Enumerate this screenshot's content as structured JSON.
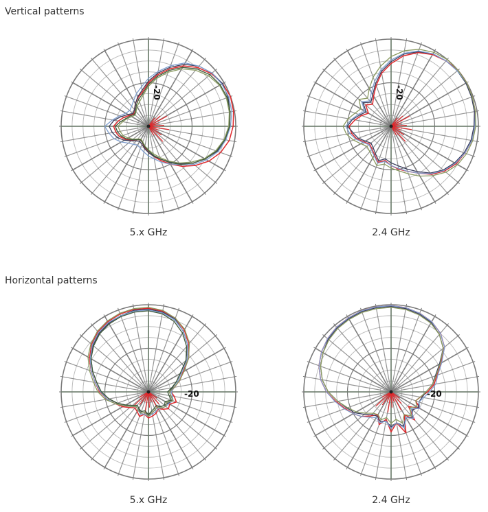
{
  "sections": {
    "vertical_title": "Vertical patterns",
    "horizontal_title": "Horizontal patterns"
  },
  "colors": {
    "grid_dark": "#7a7a7a",
    "grid_light": "#b9b9b9",
    "grid_vertical_axis": "#6f7f6f",
    "red": "#e0282c",
    "navy": "#3b3f5e",
    "steel": "#7f9fd0",
    "olive": "#8a9a60",
    "darkgreen": "#3f5a3a"
  },
  "chart_data": [
    {
      "type": "polar",
      "group": "Vertical patterns",
      "caption": "5.x GHz",
      "ring_label": "-20",
      "rings": 8,
      "spokes": 36,
      "series": [
        {
          "color": "red",
          "r": [
            0.4,
            0.35,
            0.3,
            0.25,
            0.22,
            0.25,
            0.3,
            0.35,
            0.4,
            0.5,
            0.6,
            0.7,
            0.8,
            0.88,
            0.94,
            0.98,
            1.0,
            0.99,
            0.97,
            0.94,
            0.88,
            0.8,
            0.7,
            0.6,
            0.5,
            0.42,
            0.35,
            0.3,
            0.25,
            0.2,
            0.18,
            0.2,
            0.25,
            0.3,
            0.35,
            0.38
          ]
        },
        {
          "color": "navy",
          "r": [
            0.45,
            0.4,
            0.33,
            0.27,
            0.23,
            0.25,
            0.3,
            0.36,
            0.42,
            0.52,
            0.62,
            0.72,
            0.82,
            0.9,
            0.95,
            0.98,
            0.97,
            0.95,
            0.93,
            0.9,
            0.84,
            0.75,
            0.66,
            0.56,
            0.47,
            0.4,
            0.35,
            0.3,
            0.26,
            0.22,
            0.2,
            0.22,
            0.26,
            0.32,
            0.38,
            0.42
          ]
        },
        {
          "color": "steel",
          "r": [
            0.5,
            0.42,
            0.35,
            0.3,
            0.28,
            0.3,
            0.34,
            0.4,
            0.46,
            0.55,
            0.64,
            0.74,
            0.84,
            0.9,
            0.95,
            0.97,
            0.98,
            0.97,
            0.94,
            0.9,
            0.85,
            0.77,
            0.68,
            0.58,
            0.5,
            0.44,
            0.38,
            0.34,
            0.3,
            0.27,
            0.25,
            0.27,
            0.3,
            0.36,
            0.42,
            0.46
          ]
        },
        {
          "color": "olive",
          "r": [
            0.35,
            0.3,
            0.26,
            0.22,
            0.2,
            0.22,
            0.26,
            0.3,
            0.36,
            0.46,
            0.56,
            0.66,
            0.76,
            0.84,
            0.9,
            0.94,
            0.95,
            0.94,
            0.92,
            0.88,
            0.82,
            0.74,
            0.64,
            0.55,
            0.46,
            0.38,
            0.32,
            0.27,
            0.23,
            0.19,
            0.17,
            0.19,
            0.23,
            0.27,
            0.31,
            0.33
          ]
        },
        {
          "color": "darkgreen",
          "r": [
            0.38,
            0.32,
            0.27,
            0.24,
            0.21,
            0.23,
            0.28,
            0.33,
            0.38,
            0.48,
            0.58,
            0.68,
            0.78,
            0.86,
            0.92,
            0.95,
            0.96,
            0.95,
            0.93,
            0.89,
            0.83,
            0.75,
            0.66,
            0.57,
            0.48,
            0.4,
            0.34,
            0.28,
            0.24,
            0.2,
            0.18,
            0.2,
            0.24,
            0.29,
            0.33,
            0.36
          ]
        }
      ]
    },
    {
      "type": "polar",
      "group": "Vertical patterns",
      "caption": "2.4 GHz",
      "ring_label": "-20",
      "rings": 8,
      "spokes": 36,
      "series": [
        {
          "color": "red",
          "r": [
            0.48,
            0.42,
            0.36,
            0.3,
            0.38,
            0.33,
            0.4,
            0.5,
            0.62,
            0.72,
            0.82,
            0.9,
            0.95,
            0.98,
            1.0,
            1.0,
            0.99,
            0.98,
            0.96,
            0.94,
            0.9,
            0.86,
            0.8,
            0.72,
            0.62,
            0.55,
            0.5,
            0.45,
            0.4,
            0.44,
            0.38,
            0.34,
            0.32,
            0.36,
            0.42,
            0.46
          ]
        },
        {
          "color": "navy",
          "r": [
            0.5,
            0.45,
            0.38,
            0.33,
            0.42,
            0.36,
            0.42,
            0.52,
            0.64,
            0.74,
            0.84,
            0.91,
            0.96,
            0.98,
            0.99,
            0.99,
            0.98,
            0.97,
            0.95,
            0.93,
            0.89,
            0.84,
            0.78,
            0.7,
            0.6,
            0.52,
            0.46,
            0.42,
            0.38,
            0.42,
            0.36,
            0.32,
            0.3,
            0.34,
            0.4,
            0.44
          ]
        },
        {
          "color": "steel",
          "r": [
            0.52,
            0.46,
            0.4,
            0.35,
            0.44,
            0.38,
            0.45,
            0.55,
            0.66,
            0.76,
            0.85,
            0.92,
            0.96,
            0.98,
            0.99,
            1.0,
            0.99,
            0.98,
            0.96,
            0.94,
            0.9,
            0.85,
            0.79,
            0.71,
            0.62,
            0.55,
            0.49,
            0.45,
            0.41,
            0.45,
            0.39,
            0.35,
            0.33,
            0.37,
            0.43,
            0.48
          ]
        },
        {
          "color": "olive",
          "r": [
            0.55,
            0.5,
            0.44,
            0.4,
            0.48,
            0.42,
            0.5,
            0.6,
            0.7,
            0.8,
            0.88,
            0.94,
            0.98,
            1.0,
            1.0,
            1.0,
            0.99,
            0.98,
            0.97,
            0.95,
            0.92,
            0.88,
            0.82,
            0.74,
            0.66,
            0.58,
            0.52,
            0.48,
            0.44,
            0.48,
            0.42,
            0.38,
            0.36,
            0.4,
            0.46,
            0.52
          ]
        }
      ]
    },
    {
      "type": "polar",
      "group": "Horizontal patterns",
      "caption": "5.x GHz",
      "ring_label": "-20",
      "rings": 8,
      "spokes": 36,
      "series": [
        {
          "color": "red",
          "r": [
            0.96,
            0.94,
            0.9,
            0.82,
            0.72,
            0.6,
            0.46,
            0.38,
            0.3,
            0.26,
            0.3,
            0.34,
            0.28,
            0.3,
            0.26,
            0.22,
            0.26,
            0.28,
            0.3,
            0.26,
            0.3,
            0.26,
            0.24,
            0.28,
            0.34,
            0.4,
            0.48,
            0.56,
            0.62,
            0.7,
            0.78,
            0.85,
            0.9,
            0.93,
            0.95,
            0.96
          ]
        },
        {
          "color": "navy",
          "r": [
            0.95,
            0.93,
            0.89,
            0.8,
            0.7,
            0.56,
            0.42,
            0.34,
            0.28,
            0.24,
            0.26,
            0.3,
            0.26,
            0.24,
            0.22,
            0.2,
            0.22,
            0.24,
            0.26,
            0.24,
            0.26,
            0.22,
            0.2,
            0.24,
            0.3,
            0.38,
            0.46,
            0.54,
            0.6,
            0.68,
            0.76,
            0.83,
            0.88,
            0.91,
            0.93,
            0.95
          ]
        },
        {
          "color": "steel",
          "r": [
            0.94,
            0.92,
            0.88,
            0.8,
            0.7,
            0.58,
            0.44,
            0.36,
            0.3,
            0.26,
            0.28,
            0.3,
            0.27,
            0.26,
            0.24,
            0.22,
            0.24,
            0.26,
            0.28,
            0.26,
            0.27,
            0.24,
            0.22,
            0.26,
            0.32,
            0.4,
            0.48,
            0.55,
            0.62,
            0.7,
            0.77,
            0.84,
            0.89,
            0.92,
            0.93,
            0.94
          ]
        },
        {
          "color": "olive",
          "r": [
            0.97,
            0.95,
            0.9,
            0.83,
            0.73,
            0.6,
            0.47,
            0.38,
            0.3,
            0.24,
            0.26,
            0.3,
            0.24,
            0.26,
            0.24,
            0.2,
            0.22,
            0.24,
            0.28,
            0.24,
            0.26,
            0.24,
            0.22,
            0.26,
            0.32,
            0.4,
            0.5,
            0.58,
            0.64,
            0.72,
            0.8,
            0.86,
            0.91,
            0.94,
            0.96,
            0.97
          ]
        },
        {
          "color": "darkgreen",
          "r": [
            0.93,
            0.91,
            0.86,
            0.78,
            0.68,
            0.56,
            0.42,
            0.34,
            0.27,
            0.22,
            0.24,
            0.28,
            0.22,
            0.24,
            0.22,
            0.18,
            0.2,
            0.22,
            0.26,
            0.22,
            0.24,
            0.22,
            0.2,
            0.24,
            0.3,
            0.38,
            0.46,
            0.54,
            0.6,
            0.68,
            0.76,
            0.82,
            0.87,
            0.9,
            0.92,
            0.93
          ]
        }
      ]
    },
    {
      "type": "polar",
      "group": "Horizontal patterns",
      "caption": "2.4 GHz",
      "ring_label": "-20",
      "rings": 8,
      "spokes": 36,
      "series": [
        {
          "color": "red",
          "r": [
            0.99,
            0.98,
            0.96,
            0.93,
            0.88,
            0.8,
            0.66,
            0.56,
            0.5,
            0.42,
            0.34,
            0.3,
            0.38,
            0.26,
            0.42,
            0.3,
            0.5,
            0.36,
            0.46,
            0.32,
            0.4,
            0.3,
            0.36,
            0.44,
            0.5,
            0.56,
            0.64,
            0.74,
            0.82,
            0.88,
            0.92,
            0.95,
            0.97,
            0.98,
            0.99,
            0.99
          ]
        },
        {
          "color": "navy",
          "r": [
            0.98,
            0.97,
            0.95,
            0.92,
            0.86,
            0.78,
            0.64,
            0.54,
            0.48,
            0.4,
            0.36,
            0.34,
            0.36,
            0.32,
            0.38,
            0.34,
            0.42,
            0.36,
            0.4,
            0.34,
            0.36,
            0.32,
            0.34,
            0.4,
            0.48,
            0.54,
            0.62,
            0.72,
            0.8,
            0.86,
            0.9,
            0.94,
            0.96,
            0.97,
            0.98,
            0.98
          ]
        },
        {
          "color": "steel",
          "r": [
            0.99,
            0.98,
            0.96,
            0.93,
            0.88,
            0.8,
            0.67,
            0.57,
            0.52,
            0.44,
            0.38,
            0.34,
            0.38,
            0.3,
            0.4,
            0.34,
            0.44,
            0.36,
            0.42,
            0.34,
            0.38,
            0.34,
            0.38,
            0.44,
            0.5,
            0.57,
            0.65,
            0.74,
            0.82,
            0.88,
            0.92,
            0.95,
            0.97,
            0.98,
            0.99,
            0.99
          ]
        },
        {
          "color": "olive",
          "r": [
            0.97,
            0.96,
            0.94,
            0.91,
            0.86,
            0.78,
            0.65,
            0.55,
            0.48,
            0.4,
            0.34,
            0.3,
            0.34,
            0.28,
            0.36,
            0.3,
            0.38,
            0.32,
            0.36,
            0.3,
            0.34,
            0.3,
            0.32,
            0.38,
            0.46,
            0.53,
            0.62,
            0.72,
            0.8,
            0.86,
            0.9,
            0.93,
            0.95,
            0.96,
            0.97,
            0.97
          ]
        }
      ]
    }
  ]
}
